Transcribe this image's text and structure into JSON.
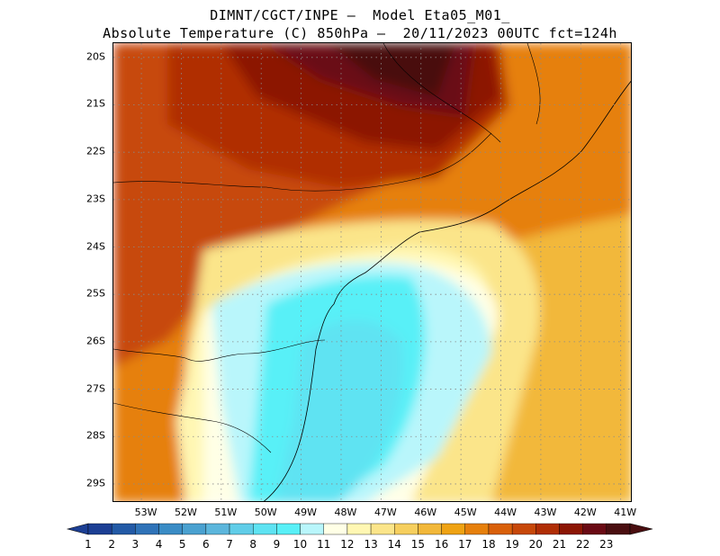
{
  "title": {
    "line1": "DIMNT/CGCT/INPE –  Model Eta05_M01_",
    "line2": "Absolute Temperature (C) 850hPa –  20/11/2023 00UTC fct=124h"
  },
  "map": {
    "lat_labels": [
      "20S",
      "21S",
      "22S",
      "23S",
      "24S",
      "25S",
      "26S",
      "27S",
      "28S",
      "29S"
    ],
    "lon_labels": [
      "53W",
      "52W",
      "51W",
      "50W",
      "49W",
      "48W",
      "47W",
      "46W",
      "45W",
      "44W",
      "43W",
      "42W",
      "41W"
    ],
    "grid": "dotted",
    "field": "temperature-850hPa",
    "extent": {
      "lon": [
        -53.7,
        -40.7
      ],
      "lat": [
        -29.4,
        -19.7
      ]
    }
  },
  "colorbar": {
    "labels": [
      "1",
      "2",
      "3",
      "4",
      "5",
      "6",
      "7",
      "8",
      "9",
      "10",
      "11",
      "12",
      "13",
      "14",
      "15",
      "16",
      "17",
      "18",
      "19",
      "20",
      "21",
      "22",
      "23"
    ],
    "colors": [
      "#1c3f94",
      "#235aa6",
      "#2f73b8",
      "#3a8cc5",
      "#4aa1d0",
      "#5cb6dc",
      "#60cde8",
      "#5ee3f2",
      "#59f0f7",
      "#b9f6fb",
      "#ffffe6",
      "#fff7b3",
      "#fbe58a",
      "#f6cf5e",
      "#f2b83a",
      "#efa313",
      "#e6800c",
      "#d9600a",
      "#c74809",
      "#b02e05",
      "#8c1604",
      "#6a0a14",
      "#4a0e10"
    ],
    "under_color": "#1c3f94",
    "over_color": "#4a0e10"
  }
}
